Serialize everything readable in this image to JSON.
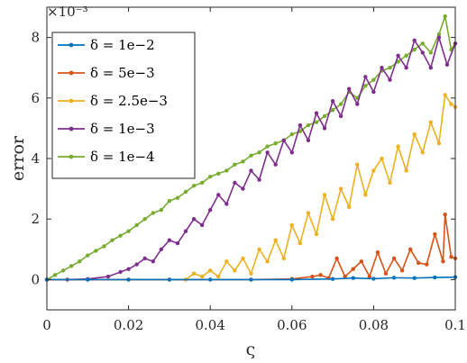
{
  "chart_data": {
    "type": "line",
    "title": "",
    "xlabel": "ς",
    "ylabel": "error",
    "y_exponent_label": "×10⁻³",
    "xlim": [
      0,
      0.1
    ],
    "ylim": [
      -1,
      9
    ],
    "x_ticks": [
      0,
      0.02,
      0.04,
      0.06,
      0.08,
      0.1
    ],
    "x_tick_labels": [
      "0",
      "0.02",
      "0.04",
      "0.06",
      "0.08",
      "0.1"
    ],
    "y_ticks": [
      0,
      2,
      4,
      6,
      8
    ],
    "y_tick_labels": [
      "0",
      "2",
      "4",
      "6",
      "8"
    ],
    "grid": false,
    "legend_position": "top-left",
    "series": [
      {
        "name": "δ = 1e−2",
        "color": "#0072BD",
        "x": [
          0,
          0.01,
          0.02,
          0.03,
          0.04,
          0.05,
          0.06,
          0.07,
          0.075,
          0.08,
          0.085,
          0.09,
          0.095,
          0.1
        ],
        "y": [
          0,
          0,
          0,
          0,
          0,
          0,
          0,
          0.02,
          0.05,
          0.03,
          0.06,
          0.05,
          0.07,
          0.08
        ]
      },
      {
        "name": "δ = 5e−3",
        "color": "#D95319",
        "x": [
          0,
          0.01,
          0.02,
          0.03,
          0.04,
          0.05,
          0.06,
          0.065,
          0.067,
          0.069,
          0.071,
          0.073,
          0.075,
          0.077,
          0.079,
          0.081,
          0.083,
          0.085,
          0.087,
          0.089,
          0.091,
          0.093,
          0.095,
          0.097,
          0.0975,
          0.099,
          0.1
        ],
        "y": [
          0,
          0,
          0,
          0,
          0,
          0,
          0.02,
          0.1,
          0.15,
          0.05,
          0.7,
          0.1,
          0.35,
          0.6,
          0.1,
          0.9,
          0.2,
          0.7,
          0.3,
          1.0,
          0.55,
          0.5,
          1.5,
          0.6,
          2.15,
          0.75,
          0.7
        ]
      },
      {
        "name": "δ = 2.5e−3",
        "color": "#EDB120",
        "x": [
          0,
          0.01,
          0.02,
          0.03,
          0.034,
          0.036,
          0.038,
          0.04,
          0.042,
          0.044,
          0.046,
          0.048,
          0.05,
          0.052,
          0.054,
          0.056,
          0.058,
          0.06,
          0.062,
          0.064,
          0.066,
          0.068,
          0.07,
          0.072,
          0.074,
          0.076,
          0.078,
          0.08,
          0.082,
          0.084,
          0.086,
          0.088,
          0.09,
          0.092,
          0.094,
          0.096,
          0.0975,
          0.099,
          0.1
        ],
        "y": [
          0,
          0,
          0,
          0,
          0,
          0.2,
          0.1,
          0.3,
          0.1,
          0.6,
          0.3,
          0.7,
          0.2,
          1.0,
          0.6,
          1.3,
          0.7,
          1.8,
          1.2,
          2.2,
          1.5,
          2.8,
          2.0,
          3.0,
          2.4,
          3.8,
          2.8,
          3.6,
          4.0,
          3.2,
          4.4,
          3.6,
          4.8,
          4.2,
          5.2,
          4.5,
          6.1,
          5.8,
          5.7
        ]
      },
      {
        "name": "δ = 1e−3",
        "color": "#7E2F8E",
        "x": [
          0,
          0.005,
          0.01,
          0.015,
          0.018,
          0.02,
          0.022,
          0.024,
          0.026,
          0.028,
          0.03,
          0.032,
          0.034,
          0.036,
          0.038,
          0.04,
          0.042,
          0.044,
          0.046,
          0.048,
          0.05,
          0.052,
          0.054,
          0.056,
          0.058,
          0.06,
          0.062,
          0.064,
          0.066,
          0.068,
          0.07,
          0.072,
          0.074,
          0.076,
          0.078,
          0.08,
          0.082,
          0.084,
          0.086,
          0.088,
          0.09,
          0.092,
          0.094,
          0.096,
          0.098,
          0.1
        ],
        "y": [
          0,
          0,
          0.02,
          0.1,
          0.25,
          0.35,
          0.5,
          0.7,
          0.6,
          1.0,
          1.3,
          1.2,
          1.6,
          2.0,
          1.8,
          2.3,
          2.8,
          2.5,
          3.2,
          3.0,
          3.6,
          3.3,
          4.2,
          3.8,
          4.6,
          4.2,
          5.1,
          4.6,
          5.5,
          5.0,
          5.9,
          5.4,
          6.3,
          5.8,
          6.7,
          6.2,
          7.0,
          6.6,
          7.4,
          7.0,
          7.9,
          7.5,
          7.0,
          8.0,
          7.1,
          7.8
        ]
      },
      {
        "name": "δ = 1e−4",
        "color": "#77AC30",
        "x": [
          0,
          0.002,
          0.004,
          0.006,
          0.008,
          0.01,
          0.012,
          0.014,
          0.016,
          0.018,
          0.02,
          0.022,
          0.024,
          0.026,
          0.028,
          0.03,
          0.032,
          0.034,
          0.036,
          0.038,
          0.04,
          0.042,
          0.044,
          0.046,
          0.048,
          0.05,
          0.052,
          0.054,
          0.056,
          0.058,
          0.06,
          0.062,
          0.064,
          0.066,
          0.068,
          0.07,
          0.072,
          0.074,
          0.076,
          0.078,
          0.08,
          0.082,
          0.084,
          0.086,
          0.088,
          0.09,
          0.092,
          0.094,
          0.096,
          0.0975,
          0.099,
          0.1
        ],
        "y": [
          0,
          0.15,
          0.3,
          0.45,
          0.6,
          0.8,
          0.95,
          1.1,
          1.3,
          1.45,
          1.6,
          1.8,
          2.0,
          2.2,
          2.3,
          2.6,
          2.7,
          2.9,
          3.1,
          3.2,
          3.4,
          3.5,
          3.6,
          3.8,
          3.9,
          4.1,
          4.2,
          4.4,
          4.5,
          4.6,
          4.8,
          4.9,
          5.1,
          5.2,
          5.4,
          5.6,
          5.8,
          6.2,
          6.0,
          6.4,
          6.6,
          6.9,
          7.0,
          7.2,
          7.4,
          7.6,
          7.8,
          7.5,
          8.1,
          8.7,
          7.6,
          7.8
        ]
      }
    ]
  }
}
